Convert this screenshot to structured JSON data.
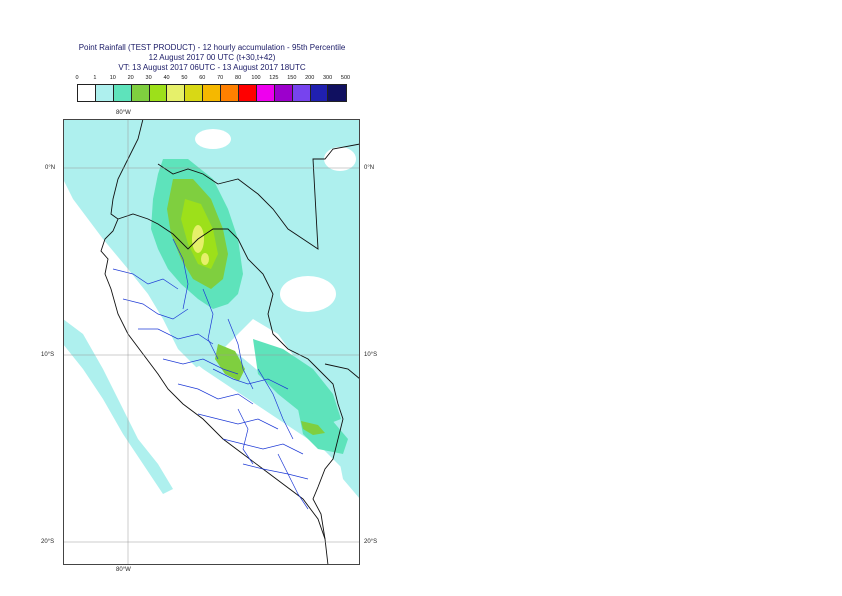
{
  "title": {
    "line1": "Point Rainfall (TEST PRODUCT) - 12 hourly accumulation - 95th Percentile",
    "line2": "12 August 2017 00 UTC (t+30,t+42)",
    "line3": "VT: 13 August 2017 06UTC - 13 August 2017 18UTC"
  },
  "legend": {
    "thresholds": [
      "0",
      "1",
      "10",
      "20",
      "30",
      "40",
      "50",
      "60",
      "70",
      "80",
      "100",
      "125",
      "150",
      "200",
      "300",
      "500"
    ],
    "colors": [
      "#ffffff",
      "#aef0ee",
      "#5ee3bb",
      "#7fcf3f",
      "#9de01a",
      "#e6f06a",
      "#d8d815",
      "#f5b800",
      "#ff8000",
      "#ff0000",
      "#ee00ee",
      "#9c00cc",
      "#7744ee",
      "#2020b0",
      "#101060"
    ]
  },
  "map": {
    "lon_label_top": "80°W",
    "lon_label_bottom": "80°W",
    "lat_labels": [
      {
        "text": "0°N",
        "lat": 0
      },
      {
        "text": "10°S",
        "lat": -10
      },
      {
        "text": "20°S",
        "lat": -20
      }
    ],
    "extent": {
      "lon_min": -83.5,
      "lon_max": -67.5,
      "lat_min": -21.2,
      "lat_max": 2.6
    }
  }
}
